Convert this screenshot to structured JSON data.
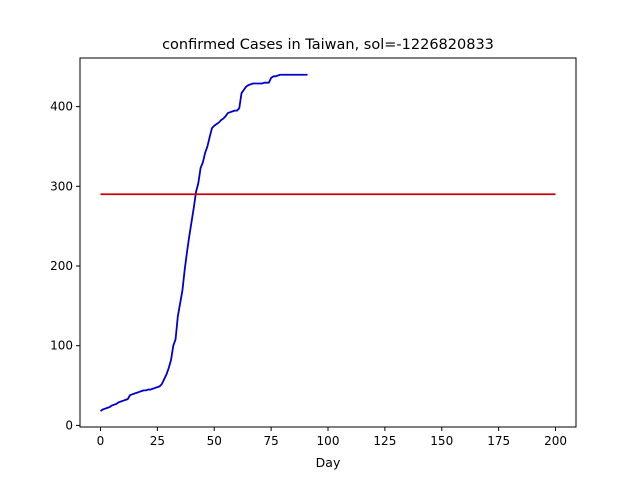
{
  "chart_data": {
    "type": "line",
    "title": "confirmed Cases in Taiwan, sol=-1226820833",
    "xlabel": "Day",
    "ylabel": "",
    "xlim": [
      -9,
      209
    ],
    "ylim": [
      -2,
      461
    ],
    "xticks": [
      0,
      25,
      50,
      75,
      100,
      125,
      150,
      175,
      200
    ],
    "yticks": [
      0,
      100,
      200,
      300,
      400
    ],
    "grid": false,
    "legend": "none",
    "series": [
      {
        "color": "#0000cc",
        "x": [
          0,
          1,
          2,
          3,
          4,
          5,
          6,
          7,
          8,
          9,
          10,
          11,
          12,
          13,
          14,
          15,
          16,
          17,
          18,
          19,
          20,
          21,
          22,
          23,
          24,
          25,
          26,
          27,
          28,
          29,
          30,
          31,
          32,
          33,
          34,
          35,
          36,
          37,
          38,
          39,
          40,
          41,
          42,
          43,
          44,
          45,
          46,
          47,
          48,
          49,
          50,
          51,
          52,
          53,
          54,
          55,
          56,
          57,
          58,
          59,
          60,
          61,
          62,
          63,
          64,
          65,
          66,
          67,
          68,
          69,
          70,
          71,
          72,
          73,
          74,
          75,
          76,
          77,
          78,
          79,
          80,
          81,
          82,
          83,
          84,
          85,
          86,
          87,
          88,
          89,
          90,
          91
        ],
        "y": [
          18,
          20,
          21,
          22,
          23,
          25,
          26,
          27,
          29,
          30,
          31,
          32,
          33,
          38,
          39,
          40,
          41,
          42,
          43,
          44,
          44,
          45,
          45,
          46,
          47,
          48,
          49,
          52,
          58,
          64,
          72,
          82,
          100,
          108,
          137,
          153,
          169,
          195,
          217,
          237,
          255,
          273,
          293,
          304,
          323,
          330,
          342,
          350,
          362,
          373,
          376,
          378,
          380,
          383,
          385,
          388,
          392,
          393,
          394,
          395,
          395,
          398,
          417,
          421,
          425,
          427,
          428,
          429,
          429,
          429,
          429,
          429,
          430,
          430,
          430,
          436,
          438,
          438,
          439,
          440,
          440,
          440,
          440,
          440,
          440,
          440,
          440,
          440,
          440,
          440,
          440,
          440
        ]
      },
      {
        "color": "#cc0000",
        "x": [
          0,
          200
        ],
        "y": [
          290,
          290
        ]
      }
    ]
  }
}
